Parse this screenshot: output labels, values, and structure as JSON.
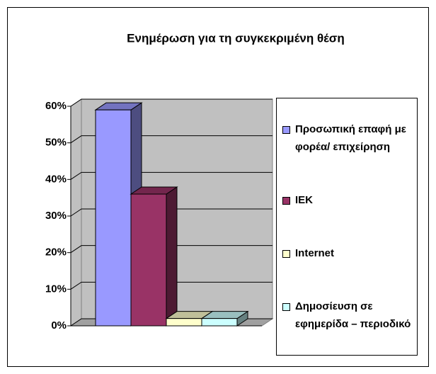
{
  "chart_data": {
    "type": "bar3d",
    "title": "Ενημέρωση για τη συγκεκριμένη θέση",
    "categories": [
      null
    ],
    "series": [
      {
        "name": "Προσωπική επαφή με φορέα/ επιχείρηση",
        "color": "#9999ff",
        "values": [
          59
        ]
      },
      {
        "name": "ΙΕΚ",
        "color": "#993366",
        "values": [
          36
        ]
      },
      {
        "name": "Internet",
        "color": "#ffffcc",
        "values": [
          2
        ]
      },
      {
        "name": "Δημοσίευση σε εφημερίδα – περιοδικό",
        "color": "#ccffff",
        "values": [
          2
        ]
      }
    ],
    "ylim": [
      0,
      60
    ],
    "yticks": [
      {
        "value": 0,
        "label": "0%"
      },
      {
        "value": 10,
        "label": "10%"
      },
      {
        "value": 20,
        "label": "20%"
      },
      {
        "value": 30,
        "label": "30%"
      },
      {
        "value": 40,
        "label": "40%"
      },
      {
        "value": 50,
        "label": "50%"
      },
      {
        "value": 60,
        "label": "60%"
      }
    ],
    "grid": true,
    "legend": "right"
  }
}
